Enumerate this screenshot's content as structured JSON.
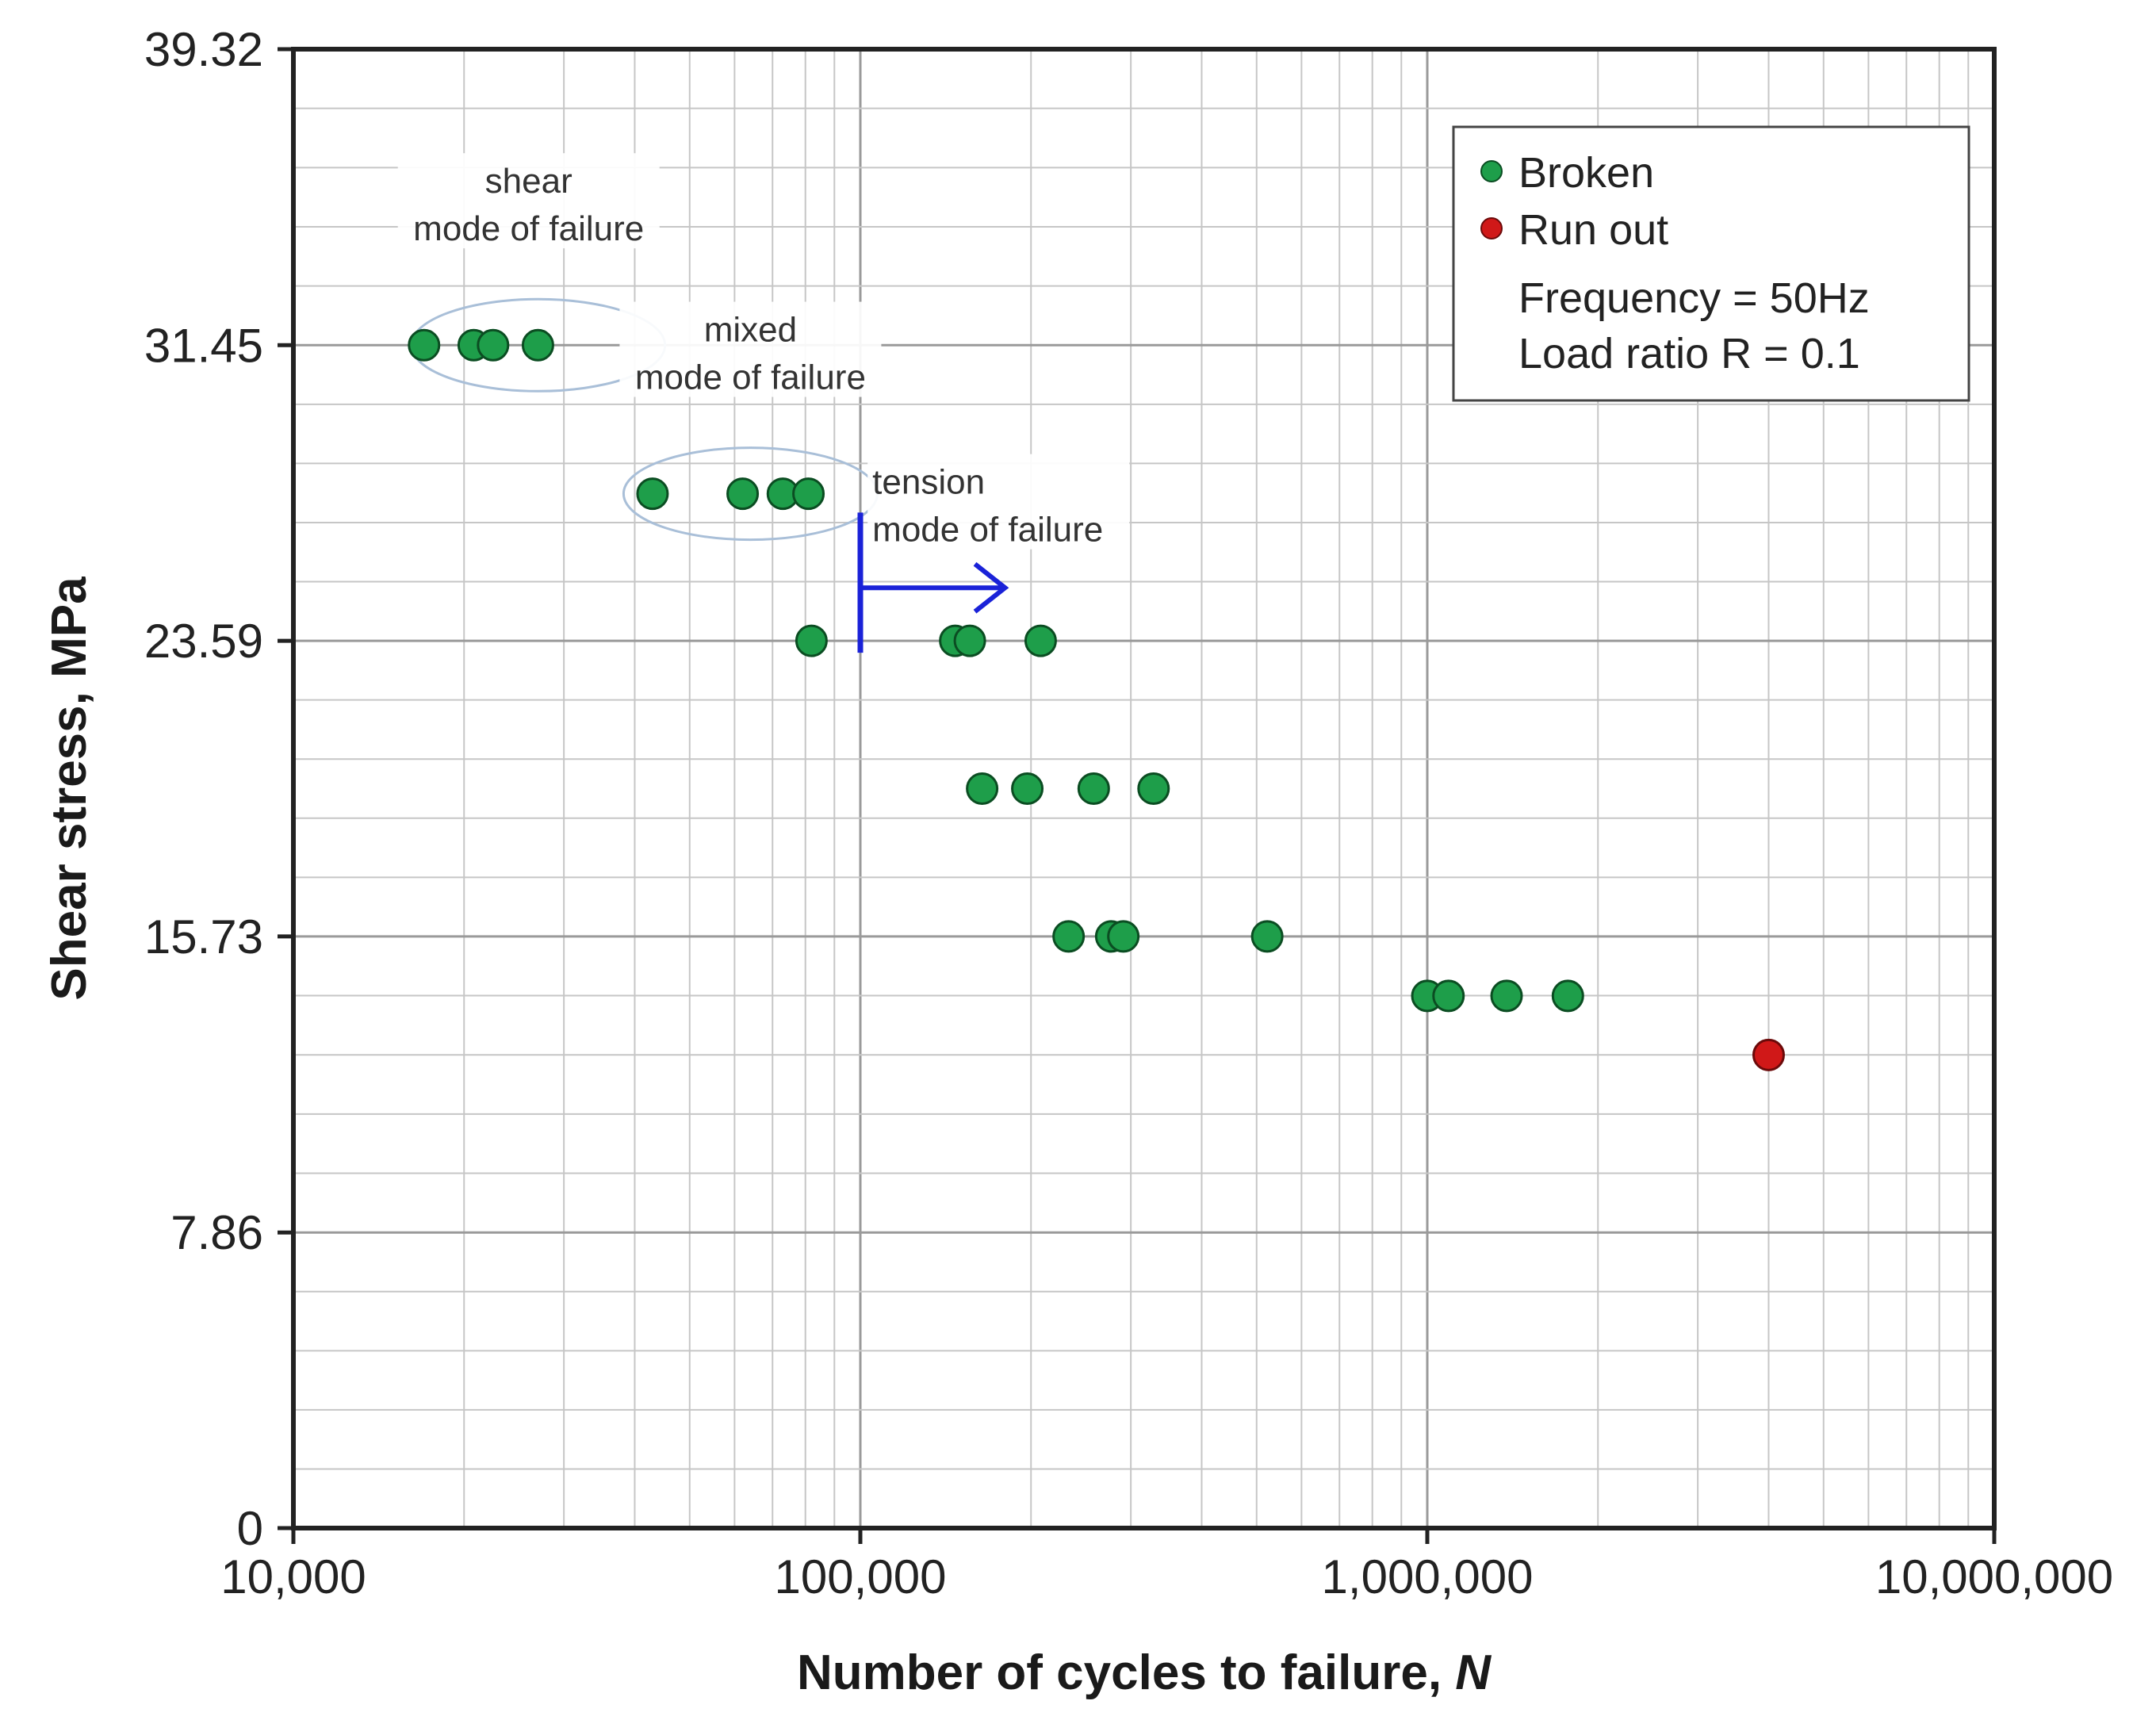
{
  "chart_data": {
    "type": "scatter",
    "title": "",
    "xlabel": "Number of cycles to failure, ",
    "xlabel_var": "N",
    "ylabel": "Shear stress, MPa",
    "xscale": "log",
    "xlim": [
      10000,
      10000000
    ],
    "ylim": [
      0,
      39.32
    ],
    "xticks": [
      10000,
      100000,
      1000000,
      10000000
    ],
    "xtick_labels": [
      "10,000",
      "100,000",
      "1,000,000",
      "10,000,000"
    ],
    "yticks": [
      0,
      7.86,
      15.73,
      23.59,
      31.45,
      39.32
    ],
    "ytick_labels": [
      "0",
      "7.86",
      "15.73",
      "23.59",
      "31.45",
      "39.32"
    ],
    "grid": true,
    "legend_position": "top-right",
    "legend_notes": [
      "Frequency = 50Hz",
      "Load ratio R = 0.1"
    ],
    "series": [
      {
        "name": "Broken",
        "color": "#1e9e4a",
        "points": [
          [
            17000,
            31.45
          ],
          [
            20800,
            31.45
          ],
          [
            22500,
            31.45
          ],
          [
            27000,
            31.45
          ],
          [
            43000,
            27.5
          ],
          [
            62000,
            27.5
          ],
          [
            73000,
            27.5
          ],
          [
            81000,
            27.5
          ],
          [
            82000,
            23.59
          ],
          [
            147000,
            23.59
          ],
          [
            156000,
            23.59
          ],
          [
            208000,
            23.59
          ],
          [
            164000,
            19.66
          ],
          [
            197000,
            19.66
          ],
          [
            258000,
            19.66
          ],
          [
            329000,
            19.66
          ],
          [
            233000,
            15.73
          ],
          [
            277000,
            15.73
          ],
          [
            291000,
            15.73
          ],
          [
            522000,
            15.73
          ],
          [
            1000000,
            14.15
          ],
          [
            1090000,
            14.15
          ],
          [
            1380000,
            14.15
          ],
          [
            1770000,
            14.15
          ]
        ]
      },
      {
        "name": "Run out",
        "color": "#d01818",
        "points": [
          [
            4000000,
            12.58
          ]
        ]
      }
    ],
    "annotations": [
      {
        "lines": [
          "shear",
          "mode of failure"
        ],
        "x": 26000,
        "y": 31.45,
        "y_text": 35.5
      },
      {
        "lines": [
          "mixed",
          "mode of failure"
        ],
        "x": 64000,
        "y": 27.5,
        "y_text": 31.55
      },
      {
        "lines": [
          "tension",
          "mode of failure"
        ],
        "x": 103000,
        "y": 25.9,
        "y_text": 27.5
      }
    ],
    "arrow": {
      "x_start": 100000,
      "x_end": 180000,
      "y": 25.0,
      "y_bar": [
        23.59,
        27.0
      ],
      "color": "#1a22d8"
    }
  }
}
